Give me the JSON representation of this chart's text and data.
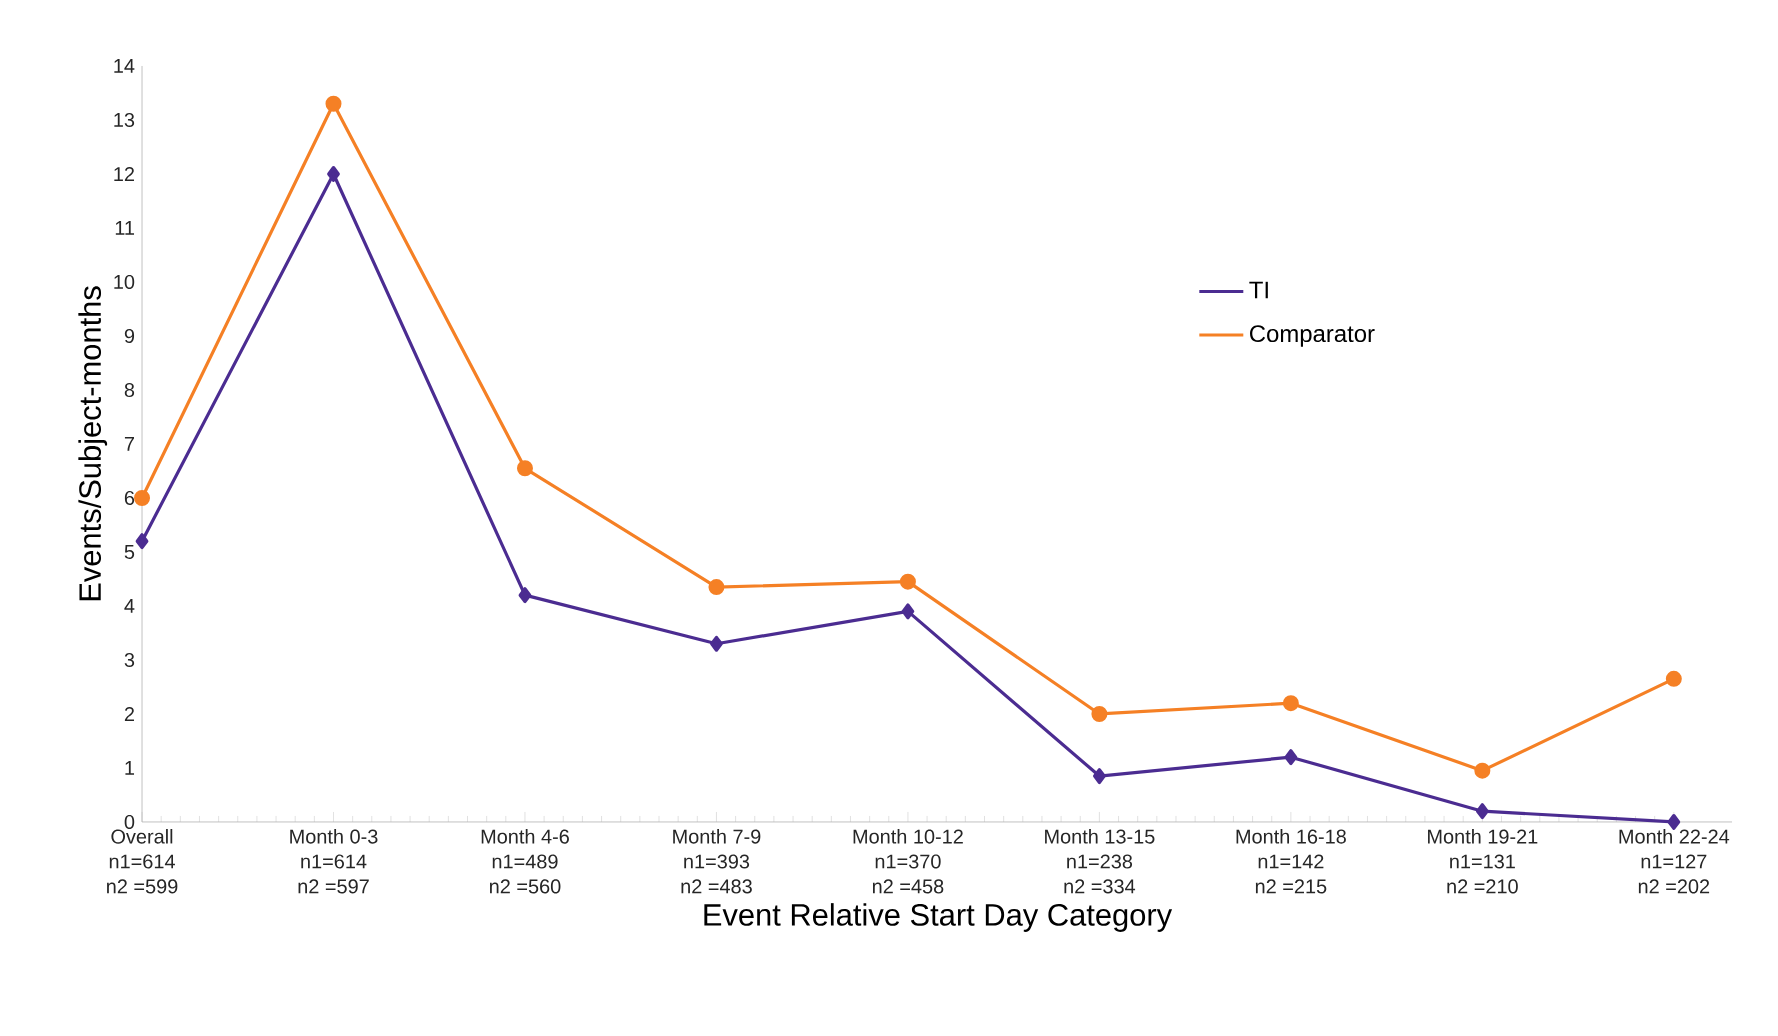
{
  "chart_data": {
    "type": "line",
    "xlabel": "Event Relative Start Day Category",
    "ylabel": "Events/Subject-months",
    "categories": [
      "Overall\nn1=614\nn2 =599",
      "Month 0-3\nn1=614\nn2 =597",
      "Month 4-6\nn1=489\nn2 =560",
      "Month 7-9\nn1=393\nn2 =483",
      "Month 10-12\nn1=370\nn2 =458",
      "Month 13-15\nn1=238\nn2 =334",
      "Month 16-18\nn1=142\nn2 =215",
      "Month 19-21\nn1=131\nn2 =210",
      "Month 22-24\nn1=127\nn2 =202"
    ],
    "series": [
      {
        "name": "TI",
        "color": "#4b2c91",
        "marker": "diamond",
        "values": [
          5.2,
          12.0,
          4.2,
          3.3,
          3.9,
          0.85,
          1.2,
          0.2,
          0.0
        ]
      },
      {
        "name": "Comparator",
        "color": "#f58025",
        "marker": "circle",
        "values": [
          6.0,
          13.3,
          6.55,
          4.35,
          4.45,
          2.0,
          2.2,
          0.95,
          2.65
        ]
      }
    ],
    "ylim": [
      0,
      14
    ],
    "yticks": [
      0,
      1,
      2,
      3,
      4,
      5,
      6,
      7,
      8,
      9,
      10,
      11,
      12,
      13,
      14
    ],
    "grid": false,
    "legend": "right",
    "line_style": "solid"
  }
}
